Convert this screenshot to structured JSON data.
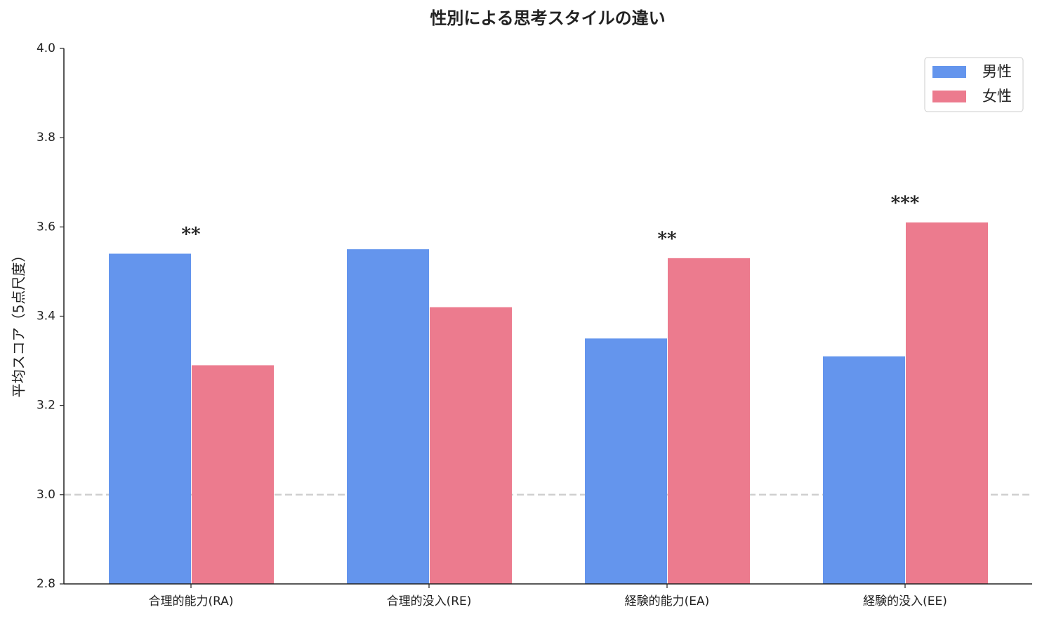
{
  "chart_data": {
    "type": "bar",
    "title": "性別による思考スタイルの違い",
    "ylabel": "平均スコア（5点尺度）",
    "categories": [
      "合理的能力(RA)",
      "合理的没入(RE)",
      "経験的能力(EA)",
      "経験的没入(EE)"
    ],
    "series": [
      {
        "name": "男性",
        "color": "#6495ED",
        "values": [
          3.54,
          3.55,
          3.35,
          3.31
        ]
      },
      {
        "name": "女性",
        "color": "#EC7B8E",
        "values": [
          3.29,
          3.42,
          3.53,
          3.61
        ]
      }
    ],
    "significance": [
      "**",
      null,
      "**",
      "***"
    ],
    "reference_line": 3.0,
    "ylim": [
      2.8,
      4.0
    ],
    "yticks": [
      {
        "value": 2.8,
        "label": "2.8"
      },
      {
        "value": 3.0,
        "label": "3.0"
      },
      {
        "value": 3.2,
        "label": "3.2"
      },
      {
        "value": 3.4,
        "label": "3.4"
      },
      {
        "value": 3.6,
        "label": "3.6"
      },
      {
        "value": 3.8,
        "label": "3.8"
      },
      {
        "value": 4.0,
        "label": "4.0"
      }
    ],
    "legend": "upper right"
  }
}
